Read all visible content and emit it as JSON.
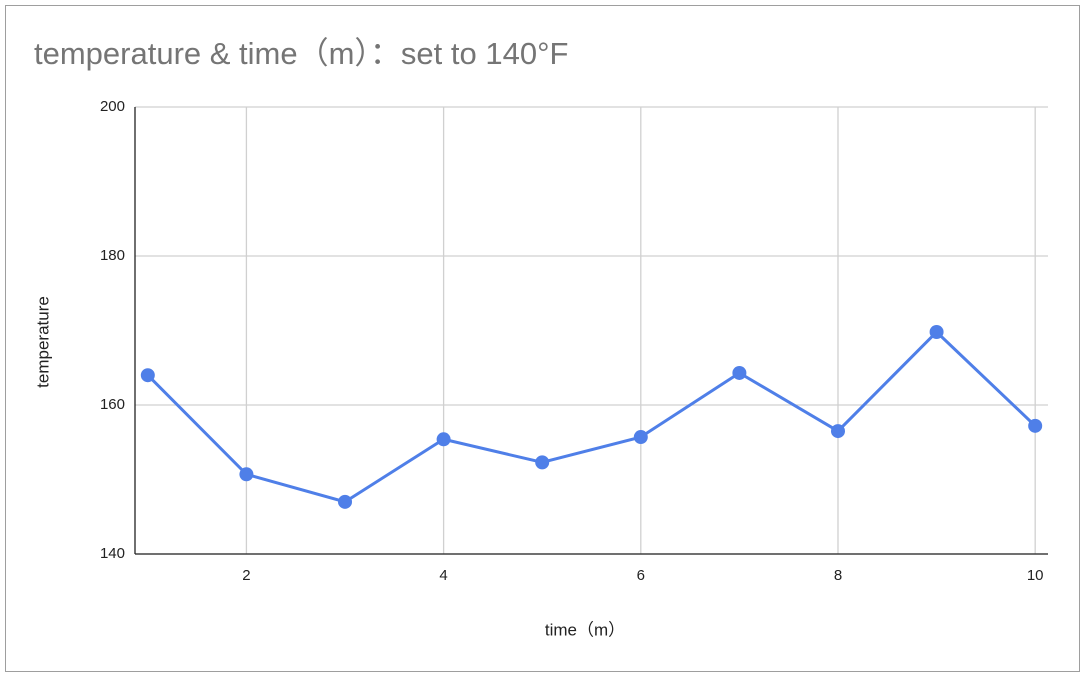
{
  "chart_data": {
    "type": "line",
    "title": "temperature & time（m）：set to 140°F",
    "x_label": "time（m）",
    "y_label": "temperature",
    "x": [
      1,
      2,
      3,
      4,
      5,
      6,
      7,
      8,
      9,
      10
    ],
    "series": [
      {
        "name": "temperature",
        "color": "#4f7fe8",
        "values": [
          164.0,
          150.7,
          147.0,
          155.4,
          152.3,
          155.7,
          164.3,
          156.5,
          169.8,
          157.2
        ]
      }
    ],
    "xlim": [
      0.87,
      10.13
    ],
    "xticks": [
      2,
      4,
      6,
      8,
      10
    ],
    "ylim": [
      140,
      200
    ],
    "yticks": [
      140,
      160,
      180,
      200
    ],
    "grid": true
  }
}
